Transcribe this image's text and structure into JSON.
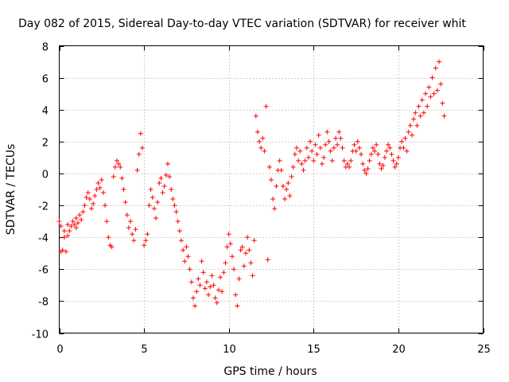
{
  "chart_data": {
    "type": "scatter",
    "title": "Day 082 of 2015, Sidereal Day-to-day VTEC variation (SDTVAR) for receiver whit",
    "xlabel": "GPS time / hours",
    "ylabel": "SDTVAR / TECUs",
    "xlim": [
      0,
      25
    ],
    "ylim": [
      -10,
      8
    ],
    "xticks": [
      "0",
      "5",
      "10",
      "15",
      "20",
      "25"
    ],
    "yticks": [
      "-10",
      "-8",
      "-6",
      "-4",
      "-2",
      "0",
      "2",
      "4",
      "6",
      "8"
    ],
    "grid": true,
    "marker": "+",
    "color": "#ff0000",
    "series": [
      {
        "name": "SDTVAR",
        "points": [
          [
            0.0,
            -3.0
          ],
          [
            0.1,
            -3.3
          ],
          [
            0.1,
            -4.9
          ],
          [
            0.2,
            -4.8
          ],
          [
            0.3,
            -3.6
          ],
          [
            0.3,
            -4.0
          ],
          [
            0.4,
            -4.9
          ],
          [
            0.5,
            -3.9
          ],
          [
            0.5,
            -3.2
          ],
          [
            0.6,
            -3.6
          ],
          [
            0.7,
            -3.3
          ],
          [
            0.8,
            -3.0
          ],
          [
            0.9,
            -3.2
          ],
          [
            1.0,
            -2.8
          ],
          [
            1.0,
            -3.4
          ],
          [
            1.1,
            -3.1
          ],
          [
            1.2,
            -2.6
          ],
          [
            1.3,
            -2.9
          ],
          [
            1.4,
            -2.4
          ],
          [
            1.5,
            -2.0
          ],
          [
            1.6,
            -1.5
          ],
          [
            1.7,
            -1.2
          ],
          [
            1.8,
            -1.6
          ],
          [
            1.9,
            -2.2
          ],
          [
            2.0,
            -1.9
          ],
          [
            2.1,
            -1.4
          ],
          [
            2.2,
            -1.0
          ],
          [
            2.3,
            -0.6
          ],
          [
            2.4,
            -0.9
          ],
          [
            2.5,
            -0.4
          ],
          [
            2.6,
            -1.2
          ],
          [
            2.7,
            -2.0
          ],
          [
            2.8,
            -3.0
          ],
          [
            2.9,
            -4.0
          ],
          [
            3.0,
            -4.5
          ],
          [
            3.1,
            -4.6
          ],
          [
            3.2,
            -0.2
          ],
          [
            3.3,
            0.4
          ],
          [
            3.4,
            0.8
          ],
          [
            3.5,
            0.6
          ],
          [
            3.6,
            0.4
          ],
          [
            3.7,
            -0.3
          ],
          [
            3.8,
            -1.0
          ],
          [
            3.9,
            -1.8
          ],
          [
            4.0,
            -2.6
          ],
          [
            4.1,
            -3.4
          ],
          [
            4.2,
            -3.0
          ],
          [
            4.3,
            -3.8
          ],
          [
            4.4,
            -4.2
          ],
          [
            4.5,
            -3.5
          ],
          [
            4.6,
            0.2
          ],
          [
            4.7,
            1.2
          ],
          [
            4.8,
            2.5
          ],
          [
            4.9,
            1.6
          ],
          [
            5.0,
            -4.5
          ],
          [
            5.1,
            -4.2
          ],
          [
            5.2,
            -3.8
          ],
          [
            5.3,
            -2.0
          ],
          [
            5.4,
            -1.0
          ],
          [
            5.5,
            -1.5
          ],
          [
            5.6,
            -2.2
          ],
          [
            5.7,
            -2.8
          ],
          [
            5.8,
            -1.8
          ],
          [
            5.9,
            -0.6
          ],
          [
            6.0,
            -0.3
          ],
          [
            6.1,
            -1.2
          ],
          [
            6.2,
            -0.8
          ],
          [
            6.3,
            -0.1
          ],
          [
            6.4,
            0.6
          ],
          [
            6.5,
            -0.2
          ],
          [
            6.6,
            -1.0
          ],
          [
            6.7,
            -1.6
          ],
          [
            6.8,
            -2.0
          ],
          [
            6.9,
            -2.4
          ],
          [
            7.0,
            -3.0
          ],
          [
            7.1,
            -3.6
          ],
          [
            7.2,
            -4.2
          ],
          [
            7.3,
            -4.8
          ],
          [
            7.4,
            -5.5
          ],
          [
            7.5,
            -4.6
          ],
          [
            7.6,
            -5.2
          ],
          [
            7.7,
            -6.0
          ],
          [
            7.8,
            -6.8
          ],
          [
            7.9,
            -7.8
          ],
          [
            8.0,
            -8.3
          ],
          [
            8.1,
            -7.4
          ],
          [
            8.2,
            -6.6
          ],
          [
            8.3,
            -7.0
          ],
          [
            8.4,
            -5.5
          ],
          [
            8.5,
            -6.2
          ],
          [
            8.6,
            -7.2
          ],
          [
            8.7,
            -6.8
          ],
          [
            8.8,
            -7.6
          ],
          [
            8.9,
            -7.1
          ],
          [
            9.0,
            -6.4
          ],
          [
            9.1,
            -7.0
          ],
          [
            9.2,
            -7.8
          ],
          [
            9.3,
            -8.1
          ],
          [
            9.4,
            -7.3
          ],
          [
            9.5,
            -6.5
          ],
          [
            9.6,
            -7.4
          ],
          [
            9.7,
            -6.2
          ],
          [
            9.8,
            -5.6
          ],
          [
            9.9,
            -4.6
          ],
          [
            10.0,
            -3.8
          ],
          [
            10.1,
            -4.4
          ],
          [
            10.2,
            -5.2
          ],
          [
            10.3,
            -6.0
          ],
          [
            10.4,
            -7.6
          ],
          [
            10.5,
            -8.3
          ],
          [
            10.6,
            -6.6
          ],
          [
            10.7,
            -4.8
          ],
          [
            10.8,
            -4.6
          ],
          [
            10.9,
            -5.8
          ],
          [
            11.0,
            -5.0
          ],
          [
            11.1,
            -4.0
          ],
          [
            11.2,
            -4.8
          ],
          [
            11.3,
            -5.6
          ],
          [
            11.4,
            -6.4
          ],
          [
            11.5,
            -4.2
          ],
          [
            11.6,
            3.6
          ],
          [
            11.7,
            2.6
          ],
          [
            11.8,
            2.0
          ],
          [
            11.9,
            1.6
          ],
          [
            12.0,
            2.2
          ],
          [
            12.1,
            1.4
          ],
          [
            12.2,
            4.2
          ],
          [
            12.3,
            -5.4
          ],
          [
            12.4,
            0.4
          ],
          [
            12.5,
            -0.4
          ],
          [
            12.6,
            -1.6
          ],
          [
            12.7,
            -2.2
          ],
          [
            12.8,
            -0.8
          ],
          [
            12.9,
            0.2
          ],
          [
            13.0,
            0.8
          ],
          [
            13.1,
            0.2
          ],
          [
            13.2,
            -0.8
          ],
          [
            13.3,
            -1.6
          ],
          [
            13.4,
            -1.0
          ],
          [
            13.5,
            -0.6
          ],
          [
            13.6,
            -1.4
          ],
          [
            13.7,
            -0.2
          ],
          [
            13.8,
            0.4
          ],
          [
            13.9,
            1.2
          ],
          [
            14.0,
            1.6
          ],
          [
            14.1,
            0.8
          ],
          [
            14.2,
            1.4
          ],
          [
            14.3,
            0.6
          ],
          [
            14.4,
            0.2
          ],
          [
            14.5,
            0.8
          ],
          [
            14.6,
            1.6
          ],
          [
            14.7,
            1.0
          ],
          [
            14.8,
            2.0
          ],
          [
            14.9,
            1.4
          ],
          [
            15.0,
            0.8
          ],
          [
            15.1,
            1.8
          ],
          [
            15.2,
            1.2
          ],
          [
            15.3,
            2.4
          ],
          [
            15.4,
            1.6
          ],
          [
            15.5,
            0.6
          ],
          [
            15.6,
            1.0
          ],
          [
            15.7,
            1.8
          ],
          [
            15.8,
            2.6
          ],
          [
            15.9,
            2.0
          ],
          [
            16.0,
            1.4
          ],
          [
            16.1,
            0.8
          ],
          [
            16.2,
            1.6
          ],
          [
            16.3,
            2.2
          ],
          [
            16.4,
            1.8
          ],
          [
            16.5,
            2.6
          ],
          [
            16.6,
            2.2
          ],
          [
            16.7,
            1.6
          ],
          [
            16.8,
            0.8
          ],
          [
            16.9,
            0.4
          ],
          [
            17.0,
            0.6
          ],
          [
            17.1,
            0.4
          ],
          [
            17.2,
            0.8
          ],
          [
            17.3,
            1.4
          ],
          [
            17.4,
            1.8
          ],
          [
            17.5,
            1.4
          ],
          [
            17.6,
            2.0
          ],
          [
            17.7,
            1.6
          ],
          [
            17.8,
            1.2
          ],
          [
            17.9,
            0.6
          ],
          [
            18.0,
            0.2
          ],
          [
            18.1,
            0.0
          ],
          [
            18.2,
            0.3
          ],
          [
            18.3,
            0.8
          ],
          [
            18.4,
            1.2
          ],
          [
            18.5,
            1.6
          ],
          [
            18.6,
            1.4
          ],
          [
            18.7,
            1.8
          ],
          [
            18.8,
            1.2
          ],
          [
            18.9,
            0.6
          ],
          [
            19.0,
            0.3
          ],
          [
            19.1,
            0.5
          ],
          [
            19.2,
            1.0
          ],
          [
            19.3,
            1.4
          ],
          [
            19.4,
            1.8
          ],
          [
            19.5,
            1.6
          ],
          [
            19.6,
            1.2
          ],
          [
            19.7,
            0.8
          ],
          [
            19.8,
            0.4
          ],
          [
            19.9,
            0.6
          ],
          [
            20.0,
            1.0
          ],
          [
            20.1,
            1.6
          ],
          [
            20.2,
            2.0
          ],
          [
            20.3,
            1.6
          ],
          [
            20.4,
            2.2
          ],
          [
            20.5,
            1.4
          ],
          [
            20.6,
            2.6
          ],
          [
            20.7,
            3.0
          ],
          [
            20.8,
            2.4
          ],
          [
            20.9,
            3.4
          ],
          [
            21.0,
            3.8
          ],
          [
            21.1,
            3.0
          ],
          [
            21.2,
            4.2
          ],
          [
            21.3,
            3.6
          ],
          [
            21.4,
            4.6
          ],
          [
            21.5,
            3.8
          ],
          [
            21.6,
            5.0
          ],
          [
            21.7,
            4.2
          ],
          [
            21.8,
            5.4
          ],
          [
            21.9,
            4.8
          ],
          [
            22.0,
            6.0
          ],
          [
            22.1,
            5.0
          ],
          [
            22.2,
            6.6
          ],
          [
            22.3,
            5.2
          ],
          [
            22.4,
            7.0
          ],
          [
            22.5,
            5.6
          ],
          [
            22.6,
            4.4
          ],
          [
            22.7,
            3.6
          ]
        ]
      }
    ]
  }
}
